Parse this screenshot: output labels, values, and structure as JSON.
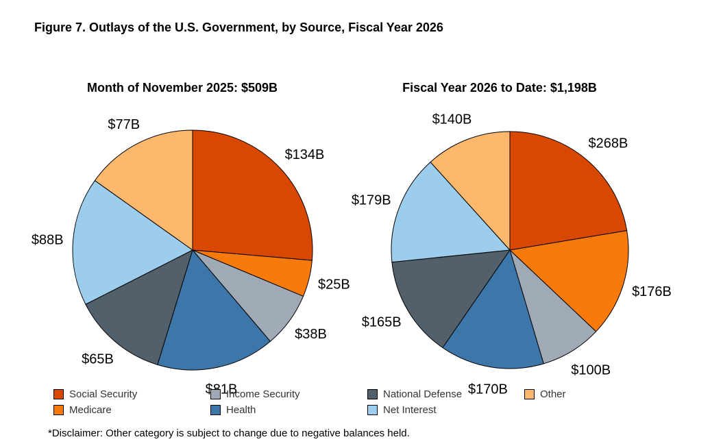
{
  "title": "Figure 7. Outlays of the U.S. Government, by Source, Fiscal Year 2026",
  "disclaimer": "*Disclaimer: Other category is subject to change due to negative balances held.",
  "colors": {
    "Social Security": "#D94801",
    "Medicare": "#F87A0A",
    "Income Security": "#A0AAB6",
    "Health": "#3D76A8",
    "National Defense": "#52606C",
    "Net Interest": "#9DCDEC",
    "Other": "#FDB86D"
  },
  "legend": [
    "Social Security",
    "Medicare",
    "Income Security",
    "Health",
    "National Defense",
    "Net Interest",
    "Other"
  ],
  "chart_data": [
    {
      "type": "pie",
      "title": "Month of November 2025: $509B",
      "categories": [
        "Social Security",
        "Medicare",
        "Income Security",
        "Health",
        "National Defense",
        "Net Interest",
        "Other"
      ],
      "values": [
        134,
        25,
        38,
        81,
        65,
        88,
        77
      ],
      "labels": [
        "$134B",
        "$25B",
        "$38B",
        "$81B",
        "$65B",
        "$88B",
        "$77B"
      ]
    },
    {
      "type": "pie",
      "title": "Fiscal Year 2026 to Date: $1,198B",
      "categories": [
        "Social Security",
        "Medicare",
        "Income Security",
        "Health",
        "National Defense",
        "Net Interest",
        "Other"
      ],
      "values": [
        268,
        176,
        100,
        170,
        165,
        179,
        140
      ],
      "labels": [
        "$268B",
        "$176B",
        "$100B",
        "$170B",
        "$165B",
        "$179B",
        "$140B"
      ]
    }
  ]
}
